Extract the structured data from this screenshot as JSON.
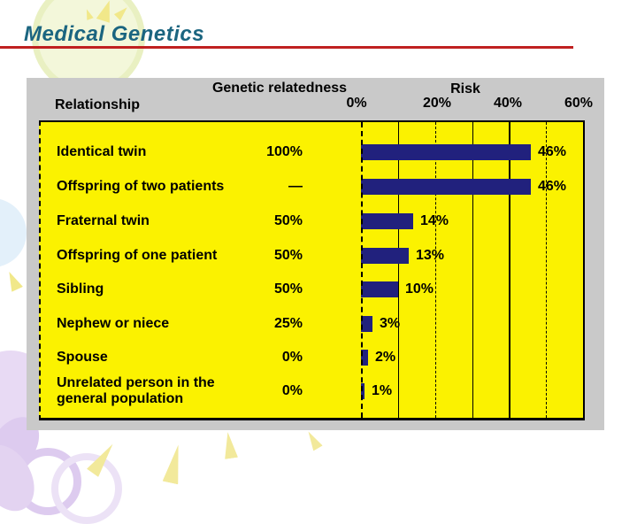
{
  "slide": {
    "title": "Medical Genetics"
  },
  "colors": {
    "title_text": "#1b6580",
    "title_rule": "#c02020",
    "panel_bg": "#c9c9c9",
    "table_bg": "#fbf200",
    "bar_fill": "#21217d",
    "text": "#000000"
  },
  "chart_data": {
    "type": "bar",
    "orientation": "horizontal",
    "headers": {
      "relationship": "Relationship",
      "relatedness": "Genetic relatedness",
      "risk": "Risk"
    },
    "axis": {
      "min": 0,
      "max": 60,
      "unit": "%",
      "tick_labels": [
        "0%",
        "20%",
        "40%",
        "60%"
      ],
      "tick_values": [
        0,
        20,
        40,
        60
      ],
      "gridlines_percent": [
        0,
        10,
        20,
        30,
        40,
        50,
        60
      ]
    },
    "rows": [
      {
        "relationship": "Identical twin",
        "relatedness": "100%",
        "risk": 46,
        "risk_label": "46%"
      },
      {
        "relationship": "Offspring of two patients",
        "relatedness": "—",
        "risk": 46,
        "risk_label": "46%"
      },
      {
        "relationship": "Fraternal twin",
        "relatedness": "50%",
        "risk": 14,
        "risk_label": "14%"
      },
      {
        "relationship": "Offspring of one patient",
        "relatedness": "50%",
        "risk": 13,
        "risk_label": "13%"
      },
      {
        "relationship": "Sibling",
        "relatedness": "50%",
        "risk": 10,
        "risk_label": "10%"
      },
      {
        "relationship": "Nephew or niece",
        "relatedness": "25%",
        "risk": 3,
        "risk_label": "3%"
      },
      {
        "relationship": "Spouse",
        "relatedness": "0%",
        "risk": 2,
        "risk_label": "2%"
      },
      {
        "relationship": "Unrelated person in the general population",
        "relatedness": "0%",
        "risk": 1,
        "risk_label": "1%"
      }
    ]
  }
}
